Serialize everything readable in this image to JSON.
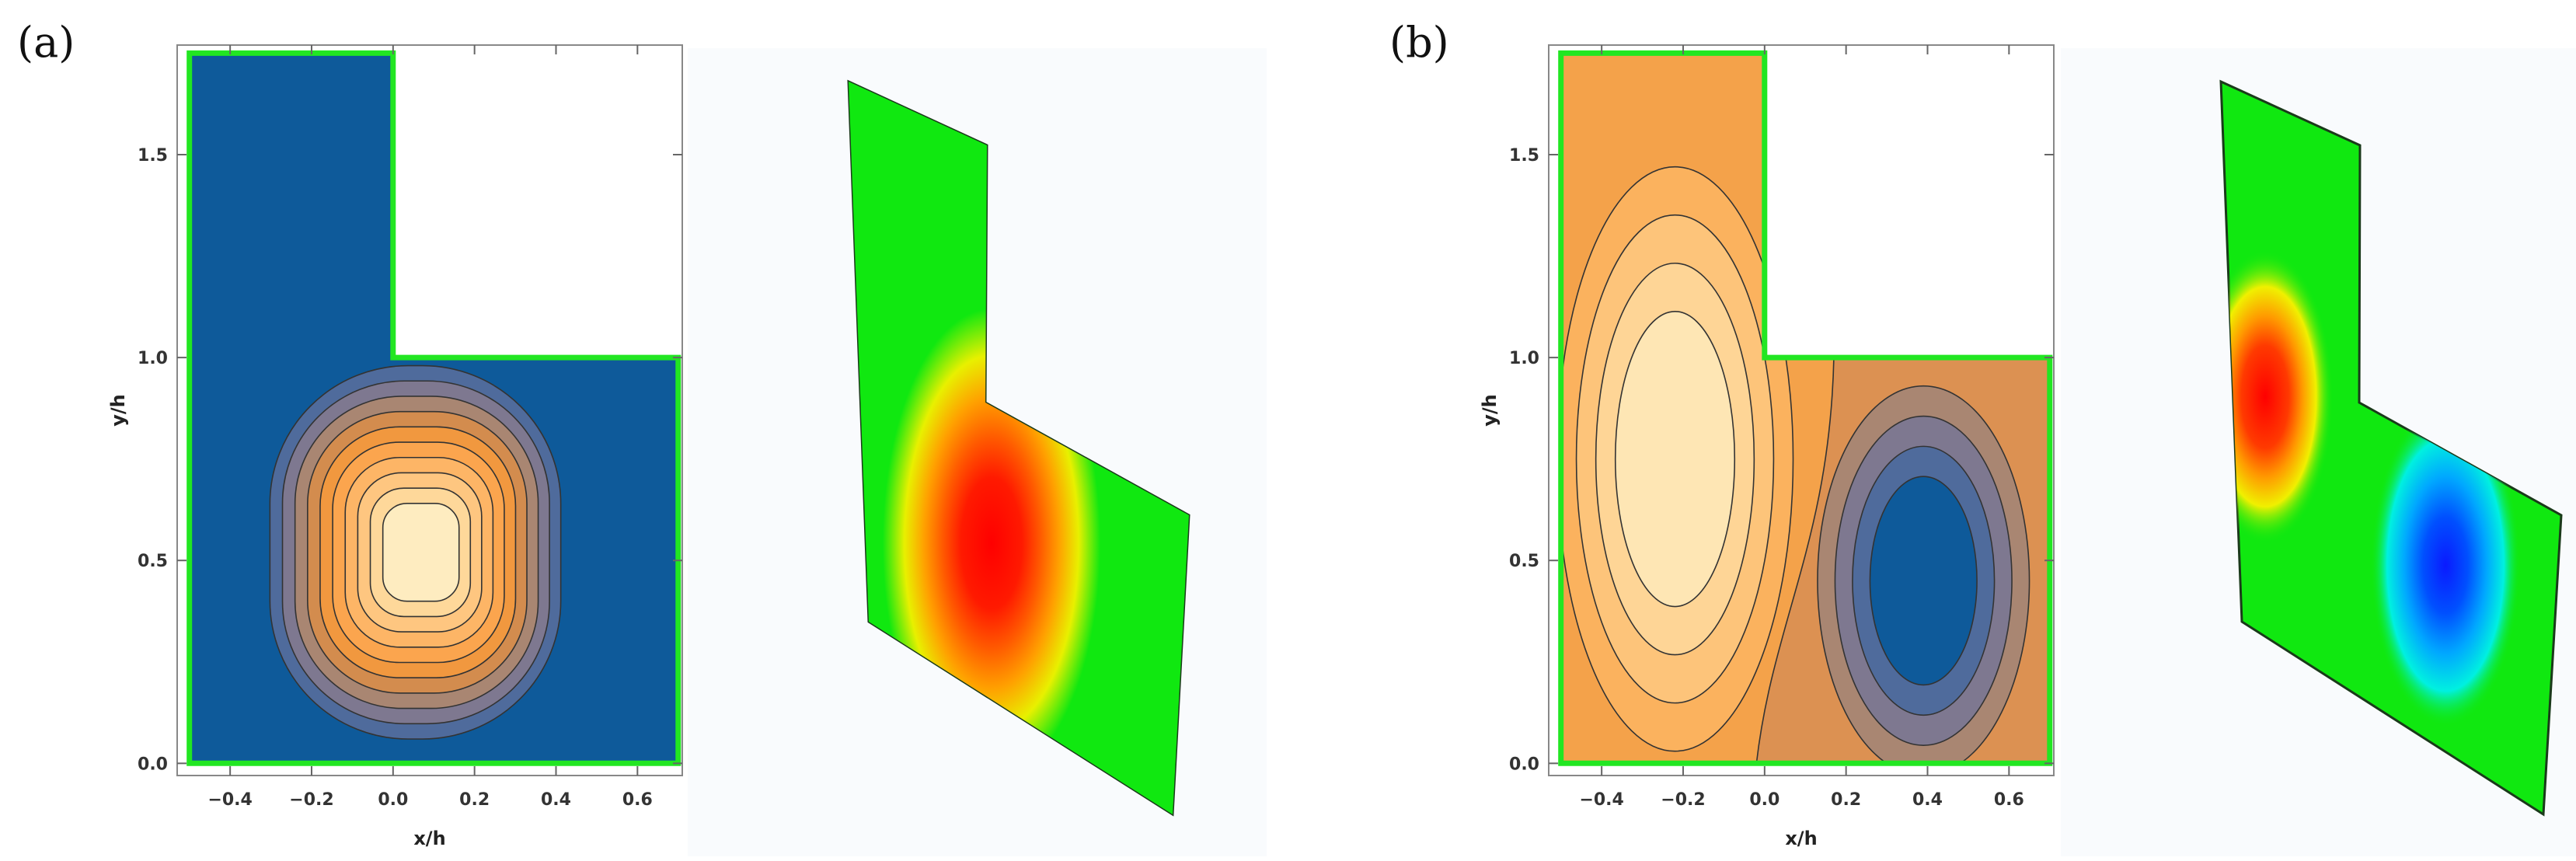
{
  "panels": [
    {
      "letter": "(a)",
      "xlabel": "x/h",
      "ylabel": "y/h",
      "xticks": [
        "−0.4",
        "−0.2",
        "0.0",
        "0.2",
        "0.4",
        "0.6"
      ],
      "yticks": [
        "0.0",
        "0.5",
        "1.0",
        "1.5"
      ]
    },
    {
      "letter": "(b)",
      "xlabel": "x/h",
      "ylabel": "y/h",
      "xticks": [
        "−0.4",
        "−0.2",
        "0.0",
        "0.2",
        "0.4",
        "0.6"
      ],
      "yticks": [
        "0.0",
        "0.5",
        "1.0",
        "1.5"
      ]
    }
  ],
  "colors": {
    "boundary": "#22e622",
    "contour_line": "#333333",
    "surface_background": "#10e810",
    "contour_a_levels": [
      "#0e5a9a",
      "#4f6b9c",
      "#7e7890",
      "#a98672",
      "#d38c4e",
      "#f1983f",
      "#fba54e",
      "#fdb566",
      "#fec680",
      "#fed89a",
      "#feecc0"
    ],
    "contour_b_levels_positive": [
      "#f4a24a",
      "#fbb25e",
      "#fdc47a",
      "#fed596",
      "#fee6b4"
    ],
    "contour_b_levels_negative": [
      "#dc9152",
      "#a98672",
      "#7e7890",
      "#4f6b9c",
      "#0e5a9a"
    ]
  },
  "chart_data": [
    {
      "type": "contour",
      "panel": "(a)",
      "description_fields": {
        "field": "single positive vortex centered near (0.07, 0.52)"
      },
      "xlim": [
        -0.53,
        0.71
      ],
      "ylim": [
        -0.03,
        1.77
      ],
      "xticks": [
        -0.4,
        -0.2,
        0.0,
        0.2,
        0.4,
        0.6
      ],
      "yticks": [
        0.0,
        0.5,
        1.0,
        1.5
      ],
      "xlabel": "x/h",
      "ylabel": "y/h",
      "domain_polygon": [
        [
          -0.5,
          0.0
        ],
        [
          0.7,
          0.0
        ],
        [
          0.7,
          1.0
        ],
        [
          0.0,
          1.0
        ],
        [
          0.0,
          1.75
        ],
        [
          -0.5,
          1.75
        ]
      ],
      "vortices": [
        {
          "x": 0.07,
          "y": 0.52,
          "sign": 1
        }
      ],
      "levels": 10,
      "grid": false,
      "companion": "3d-surface"
    },
    {
      "type": "contour",
      "panel": "(b)",
      "description_fields": {
        "field": "counter-rotating vortex pair, positive at (-0.22, 0.75), negative at (0.39, 0.45)"
      },
      "xlim": [
        -0.53,
        0.71
      ],
      "ylim": [
        -0.03,
        1.77
      ],
      "xticks": [
        -0.4,
        -0.2,
        0.0,
        0.2,
        0.4,
        0.6
      ],
      "yticks": [
        0.0,
        0.5,
        1.0,
        1.5
      ],
      "xlabel": "x/h",
      "ylabel": "y/h",
      "domain_polygon": [
        [
          -0.5,
          0.0
        ],
        [
          0.7,
          0.0
        ],
        [
          0.7,
          1.0
        ],
        [
          0.0,
          1.0
        ],
        [
          0.0,
          1.75
        ],
        [
          -0.5,
          1.75
        ]
      ],
      "vortices": [
        {
          "x": -0.22,
          "y": 0.75,
          "sign": 1
        },
        {
          "x": 0.39,
          "y": 0.45,
          "sign": -1
        }
      ],
      "levels": 5,
      "grid": false,
      "companion": "3d-surface"
    }
  ]
}
